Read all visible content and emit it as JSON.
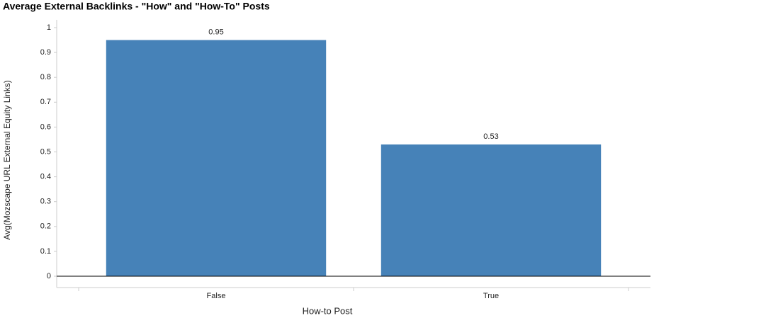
{
  "chart_data": {
    "type": "bar",
    "title": "Average External Backlinks - \"How\" and \"How-To\" Posts",
    "x_label": "How-to Post",
    "y_label": "Avg(Mozscape URL External Equity Links)",
    "categories": [
      "False",
      "True"
    ],
    "values": [
      0.95,
      0.53
    ],
    "color": "#4682b8",
    "ylim": [
      0,
      1
    ],
    "yticks": [
      0,
      0.1,
      0.2,
      0.3,
      0.4,
      0.5,
      0.6,
      0.7,
      0.8,
      0.9,
      1
    ],
    "grid": false
  }
}
